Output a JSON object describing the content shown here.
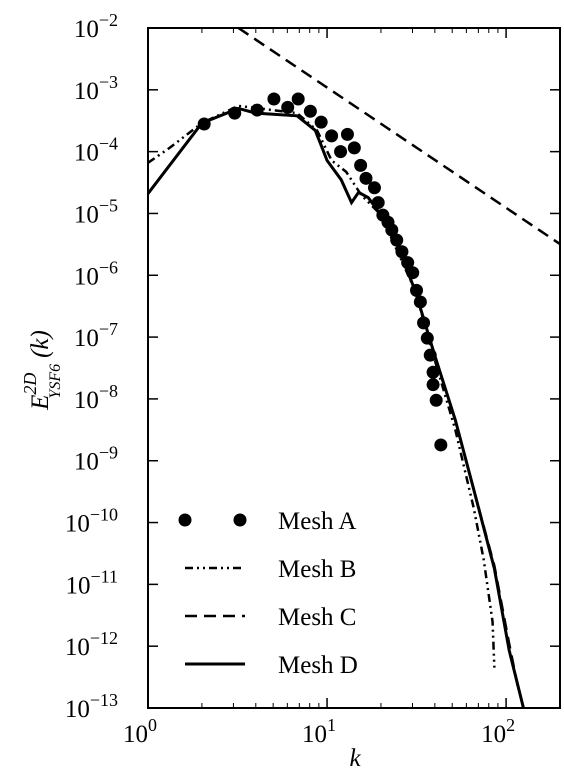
{
  "chart_data": {
    "type": "line",
    "xlabel": "k",
    "ylabel": {
      "base": "E",
      "sup": "2D",
      "sub": "YSF6",
      "arg": "(k)"
    },
    "xscale": "log",
    "yscale": "log",
    "xlim": [
      1,
      200
    ],
    "ylim": [
      1e-13,
      0.01
    ],
    "xticks": [
      {
        "value": 1,
        "label": "100"
      },
      {
        "value": 10,
        "label": "101"
      },
      {
        "value": 100,
        "label": "102"
      }
    ],
    "yticks": [
      {
        "value": 1e-13,
        "label": "10−13"
      },
      {
        "value": 1e-12,
        "label": "10−12"
      },
      {
        "value": 1e-11,
        "label": "10−11"
      },
      {
        "value": 1e-10,
        "label": "10−10"
      },
      {
        "value": 1e-09,
        "label": "10−9"
      },
      {
        "value": 1e-08,
        "label": "10−8"
      },
      {
        "value": 1e-07,
        "label": "10−7"
      },
      {
        "value": 1e-06,
        "label": "10−6"
      },
      {
        "value": 1e-05,
        "label": "10−5"
      },
      {
        "value": 0.0001,
        "label": "10−4"
      },
      {
        "value": 0.001,
        "label": "10−3"
      },
      {
        "value": 0.01,
        "label": "10−2"
      }
    ],
    "legend": "lower left",
    "series": [
      {
        "name": "Mesh A",
        "color": "#000000",
        "style": "markers",
        "x": [
          2.06,
          3.05,
          4.07,
          5.05,
          6.03,
          6.9,
          8.07,
          9.27,
          10.6,
          11.9,
          13.0,
          14.2,
          15.4,
          16.5,
          18.4,
          19.3,
          20.5,
          21.9,
          23.0,
          24.5,
          26.2,
          28.2,
          30.1,
          31.6,
          33.2,
          34.6,
          36.3,
          37.7,
          39.1,
          39.1,
          40.7,
          43.2
        ],
        "values": [
          0.00028,
          0.00042,
          0.00047,
          0.00071,
          0.00052,
          0.00071,
          0.00045,
          0.0003,
          0.00018,
          0.0001,
          0.00019,
          0.000115,
          6e-05,
          3.7e-05,
          2.6e-05,
          1.5e-05,
          9.4e-06,
          7.2e-06,
          5.4e-06,
          3.7e-06,
          2.4e-06,
          1.6e-06,
          1.1e-06,
          5.7e-07,
          3.7e-07,
          1.7e-07,
          9.6e-08,
          5.1e-08,
          2.7e-08,
          1.7e-08,
          9.5e-09,
          1.8e-09
        ]
      },
      {
        "name": "Mesh B",
        "color": "#000000",
        "style": "dashdot",
        "x": [
          1,
          1.32,
          2,
          3.2,
          6.8,
          8.8,
          10.6,
          12.8,
          15.5,
          20,
          31,
          40,
          52,
          66,
          75,
          84,
          86
        ],
        "values": [
          6.6e-05,
          0.000115,
          0.00029,
          0.00055,
          0.00042,
          0.00022,
          7.2e-05,
          4.7e-05,
          2e-05,
          9.5e-06,
          5.7e-07,
          4.2e-08,
          3.2e-09,
          1.7e-10,
          2.5e-11,
          2.5e-12,
          4.5e-13
        ]
      },
      {
        "name": "Mesh C",
        "color": "#000000",
        "style": "dashed",
        "x": [
          1,
          2,
          3.2,
          4,
          6.8,
          8.6,
          10,
          12,
          13.7,
          15,
          17,
          20,
          24,
          31,
          40,
          52,
          66,
          86,
          104,
          118
        ],
        "values": [
          2.1e-05,
          0.00029,
          0.0005,
          0.00042,
          0.00038,
          0.00022,
          7.2e-05,
          3.5e-05,
          1.5e-05,
          2.2e-05,
          1.8e-05,
          9.5e-06,
          3.7e-06,
          5.7e-07,
          5e-08,
          4.6e-09,
          3.4e-10,
          2e-11,
          1.1e-12,
          1.8e-13
        ]
      },
      {
        "name": "Mesh D",
        "color": "#000000",
        "style": "solid",
        "x": [
          1,
          2,
          3.2,
          4,
          6.8,
          8.6,
          10,
          12,
          13.7,
          15,
          17,
          20,
          24,
          31,
          40,
          52,
          66,
          86,
          104,
          125
        ],
        "values": [
          2.1e-05,
          0.00029,
          0.0005,
          0.00042,
          0.00038,
          0.00022,
          7.2e-05,
          3.5e-05,
          1.5e-05,
          2.2e-05,
          1.8e-05,
          9.5e-06,
          3.7e-06,
          5.7e-07,
          5e-08,
          4.6e-09,
          3.4e-10,
          1.8e-11,
          8.6e-13,
          1e-13
        ]
      }
    ],
    "reference_line": {
      "color": "#000000",
      "style": "dashed",
      "x": [
        3.2,
        200
      ],
      "values": [
        0.01,
        3.2e-06
      ]
    }
  }
}
